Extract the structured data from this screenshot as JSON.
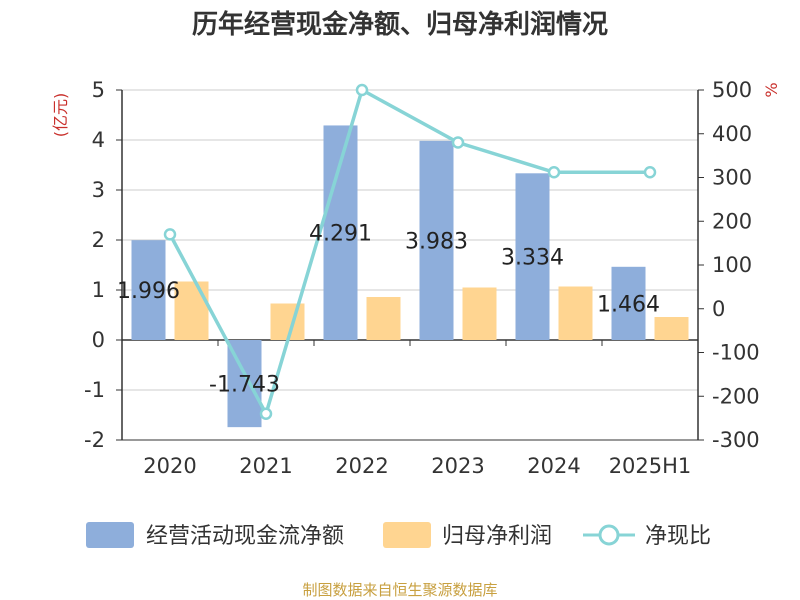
{
  "chart_data": {
    "type": "bar",
    "title": "历年经营现金净额、归母净利润情况",
    "categories": [
      "2020",
      "2021",
      "2022",
      "2023",
      "2024",
      "2025H1"
    ],
    "left_axis": {
      "unit": "(亿元)",
      "ylim": [
        -2,
        5
      ],
      "ticks": [
        "-2",
        "-1",
        "0",
        "1",
        "2",
        "3",
        "4",
        "5"
      ]
    },
    "right_axis": {
      "unit": "%",
      "ylim": [
        -300,
        500
      ],
      "ticks": [
        "-300",
        "-200",
        "-100",
        "0",
        "100",
        "200",
        "300",
        "400",
        "500"
      ]
    },
    "series": [
      {
        "name": "经营活动现金流净额",
        "type": "bar",
        "axis": "left",
        "values": [
          1.996,
          -1.743,
          4.291,
          3.983,
          3.334,
          1.464
        ],
        "labels": [
          "1.996",
          "-1.743",
          "4.291",
          "3.983",
          "3.334",
          "1.464"
        ]
      },
      {
        "name": "归母净利润",
        "type": "bar",
        "axis": "left",
        "values": [
          1.17,
          0.73,
          0.86,
          1.05,
          1.07,
          0.46
        ]
      },
      {
        "name": "净现比",
        "type": "line",
        "axis": "right",
        "values": [
          170,
          -240,
          500,
          380,
          312,
          312
        ]
      }
    ],
    "grid": true,
    "legend_position": "bottom"
  },
  "colors": {
    "bar1": "#8eaedb",
    "bar2": "#ffd591",
    "line": "#87d4d6",
    "accent": "#c9302c",
    "source": "#c8a040"
  },
  "source_text": "制图数据来自恒生聚源数据库"
}
